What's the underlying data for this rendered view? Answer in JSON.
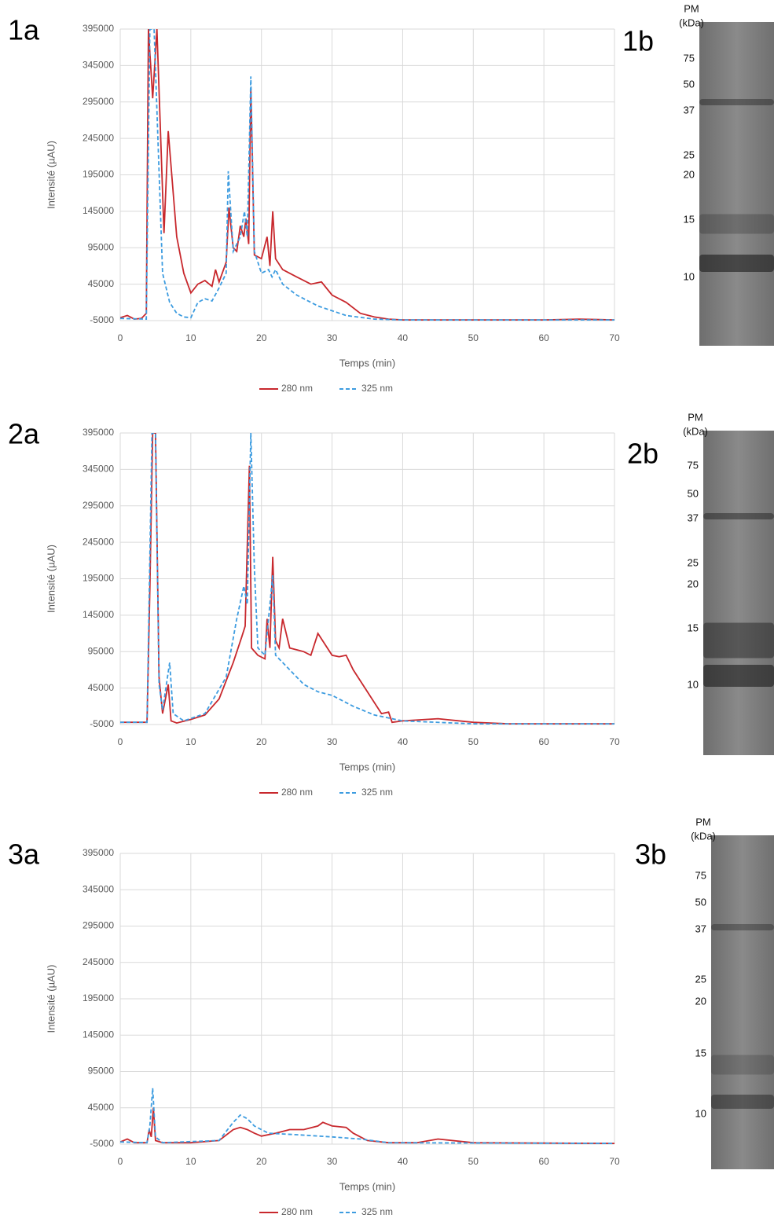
{
  "chart_data": [
    {
      "type": "line",
      "label": "1a",
      "xlabel": "Temps (min)",
      "ylabel": "Intensité (µAU)",
      "xlim": [
        0,
        70
      ],
      "xticks": [
        0,
        10,
        20,
        30,
        40,
        50,
        60,
        70
      ],
      "ylim": [
        -5000,
        395000
      ],
      "yticks": [
        -5000,
        45000,
        95000,
        145000,
        195000,
        245000,
        295000,
        345000,
        395000
      ],
      "grid": true,
      "series": [
        {
          "name": "280 nm",
          "color": "#c8282d",
          "dash": false,
          "x": [
            0,
            1,
            2,
            3,
            3.7,
            4,
            4.6,
            5.2,
            6.2,
            6.8,
            8,
            9,
            10,
            11,
            12,
            13,
            13.5,
            14,
            15,
            15.4,
            16,
            16.5,
            17,
            17.5,
            17.8,
            18.2,
            18.5,
            19,
            20,
            20.8,
            21.2,
            21.6,
            22,
            23,
            25,
            27,
            28.5,
            30,
            32,
            34,
            36,
            38,
            40,
            50,
            60,
            65,
            70
          ],
          "values": [
            -1000,
            2000,
            -3000,
            -2000,
            5000,
            395000,
            300000,
            395000,
            115000,
            255000,
            110000,
            60000,
            33000,
            45000,
            50000,
            42000,
            65000,
            48000,
            75000,
            150000,
            95000,
            90000,
            125000,
            110000,
            135000,
            100000,
            315000,
            85000,
            80000,
            110000,
            70000,
            145000,
            80000,
            65000,
            55000,
            45000,
            48000,
            30000,
            20000,
            5000,
            0,
            -3000,
            -4000,
            -4000,
            -4000,
            -3000,
            -4000
          ]
        },
        {
          "name": "325 nm",
          "color": "#3d9ce0",
          "dash": true,
          "x": [
            0,
            3.7,
            4.2,
            4.8,
            5.5,
            6,
            7,
            8,
            9,
            10,
            11,
            12,
            13,
            14,
            15,
            15.3,
            16,
            17,
            17.6,
            18,
            18.5,
            19,
            20,
            21,
            21.5,
            22,
            23,
            25,
            28,
            32,
            36,
            40,
            70
          ],
          "values": [
            -2000,
            -3000,
            395000,
            395000,
            200000,
            60000,
            20000,
            5000,
            0,
            -1000,
            20000,
            25000,
            22000,
            40000,
            60000,
            200000,
            90000,
            110000,
            145000,
            110000,
            330000,
            90000,
            60000,
            65000,
            55000,
            65000,
            45000,
            30000,
            15000,
            2000,
            -3000,
            -4000,
            -4000
          ]
        }
      ]
    },
    {
      "type": "line",
      "label": "2a",
      "xlabel": "Temps (min)",
      "ylabel": "Intensité (µAU)",
      "xlim": [
        0,
        70
      ],
      "xticks": [
        0,
        10,
        20,
        30,
        40,
        50,
        60,
        70
      ],
      "ylim": [
        -5000,
        395000
      ],
      "yticks": [
        -5000,
        45000,
        95000,
        145000,
        195000,
        245000,
        295000,
        345000,
        395000
      ],
      "grid": true,
      "series": [
        {
          "name": "280 nm",
          "color": "#c8282d",
          "dash": false,
          "x": [
            0,
            3.8,
            4.2,
            4.6,
            5,
            5.5,
            6,
            6.8,
            7.2,
            8,
            10,
            12,
            14,
            16,
            17.2,
            17.7,
            18.3,
            18.6,
            19.5,
            20.5,
            20.8,
            21.2,
            21.6,
            22,
            22.5,
            23,
            24,
            26,
            27,
            28,
            29,
            30,
            31,
            32,
            33,
            35,
            37,
            38,
            38.5,
            40,
            45,
            50,
            55,
            70
          ],
          "values": [
            -2000,
            -2000,
            180000,
            395000,
            395000,
            60000,
            10000,
            50000,
            0,
            -3000,
            2000,
            8000,
            30000,
            80000,
            115000,
            130000,
            350000,
            100000,
            90000,
            85000,
            140000,
            100000,
            225000,
            110000,
            100000,
            140000,
            100000,
            95000,
            90000,
            120000,
            105000,
            90000,
            88000,
            90000,
            70000,
            40000,
            10000,
            12000,
            -2000,
            0,
            3000,
            -2000,
            -4000,
            -4000
          ]
        },
        {
          "name": "325 nm",
          "color": "#3d9ce0",
          "dash": true,
          "x": [
            0,
            3.8,
            4.5,
            5,
            5.5,
            6,
            7,
            7.5,
            9,
            12,
            15,
            16.5,
            17.5,
            18,
            18.5,
            19,
            19.5,
            20.5,
            21.6,
            22,
            24,
            26,
            28,
            30,
            33,
            36,
            40,
            50,
            70
          ],
          "values": [
            -2000,
            -2000,
            395000,
            395000,
            50000,
            15000,
            80000,
            10000,
            0,
            10000,
            60000,
            140000,
            185000,
            160000,
            395000,
            210000,
            100000,
            90000,
            200000,
            90000,
            70000,
            50000,
            40000,
            35000,
            20000,
            8000,
            0,
            -4000,
            -4000
          ]
        }
      ]
    },
    {
      "type": "line",
      "label": "3a",
      "xlabel": "Temps (min)",
      "ylabel": "Intensité (µAU)",
      "xlim": [
        0,
        70
      ],
      "xticks": [
        0,
        10,
        20,
        30,
        40,
        50,
        60,
        70
      ],
      "ylim": [
        -5000,
        395000
      ],
      "yticks": [
        -5000,
        45000,
        95000,
        145000,
        195000,
        245000,
        295000,
        345000,
        395000
      ],
      "grid": true,
      "series": [
        {
          "name": "280 nm",
          "color": "#c8282d",
          "dash": false,
          "x": [
            0,
            1,
            2,
            3.8,
            4.1,
            4.4,
            4.7,
            5,
            6,
            10,
            14,
            16,
            17,
            18,
            19,
            20,
            22,
            24,
            26,
            28,
            28.7,
            30,
            32,
            33,
            35,
            38,
            42,
            45,
            50,
            70
          ],
          "values": [
            -2000,
            2000,
            -3000,
            -3000,
            15000,
            5000,
            45000,
            0,
            -3000,
            -3000,
            0,
            15000,
            18000,
            15000,
            10000,
            6000,
            10000,
            15000,
            15000,
            20000,
            25000,
            20000,
            18000,
            10000,
            0,
            -3000,
            -3000,
            2000,
            -3000,
            -4000
          ]
        },
        {
          "name": "325 nm",
          "color": "#3d9ce0",
          "dash": true,
          "x": [
            0,
            3.8,
            4.2,
            4.6,
            5,
            6,
            14,
            16,
            17,
            18,
            19,
            21,
            25,
            30,
            34,
            38,
            70
          ],
          "values": [
            -2000,
            -3000,
            20000,
            72000,
            5000,
            -3000,
            0,
            25000,
            35000,
            30000,
            20000,
            10000,
            8000,
            5000,
            2000,
            -3000,
            -4000
          ]
        }
      ]
    }
  ],
  "gels": [
    {
      "label": "1b",
      "header": [
        "PM",
        "(kDa)"
      ],
      "markers": [
        75,
        50,
        37,
        25,
        20,
        15,
        10
      ]
    },
    {
      "label": "2b",
      "header": [
        "PM",
        "(kDa)"
      ],
      "markers": [
        75,
        50,
        37,
        25,
        20,
        15,
        10
      ]
    },
    {
      "label": "3b",
      "header": [
        "PM",
        "(kDa)"
      ],
      "markers": [
        75,
        50,
        37,
        25,
        20,
        15,
        10
      ]
    }
  ]
}
